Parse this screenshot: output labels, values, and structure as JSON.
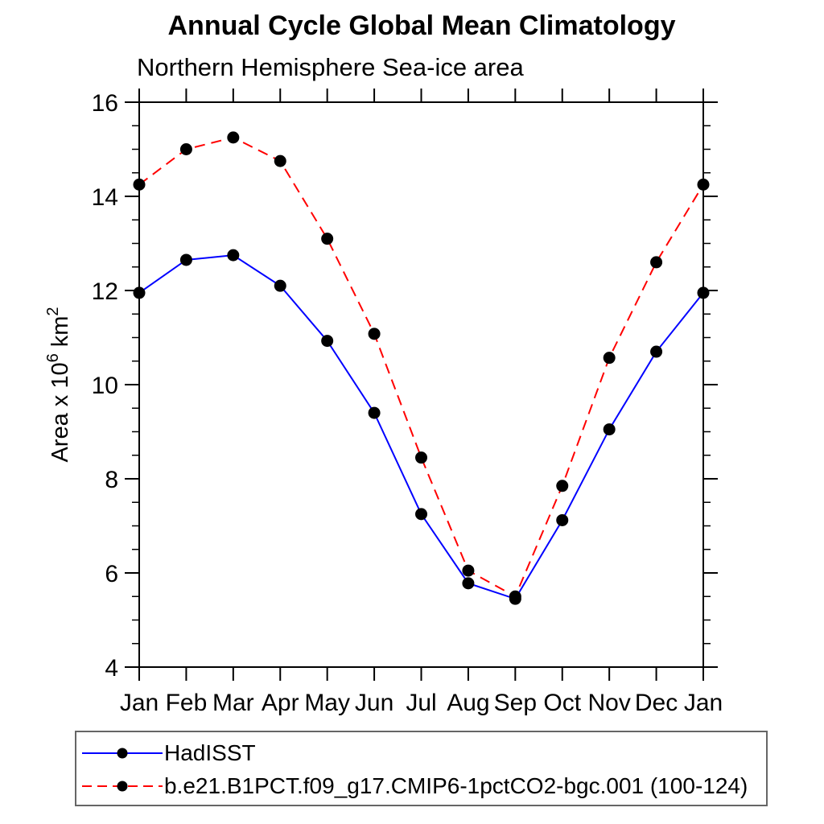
{
  "chart_data": {
    "type": "line",
    "title": "Annual Cycle Global Mean Climatology",
    "subtitle": "Northern Hemisphere Sea-ice area",
    "ylabel": "Area x 10^6 km^2",
    "xlabel": "",
    "categories": [
      "Jan",
      "Feb",
      "Mar",
      "Apr",
      "May",
      "Jun",
      "Jul",
      "Aug",
      "Sep",
      "Oct",
      "Nov",
      "Dec",
      "Jan"
    ],
    "ylim": [
      4,
      16
    ],
    "ytick_major_step": 2,
    "ytick_minor_step": 0.5,
    "grid": false,
    "legend_position": "bottom-left-box",
    "marker_color": "#000000",
    "axis_color": "#000000",
    "series": [
      {
        "name": "HadISST",
        "color": "#0000ff",
        "dash": "solid",
        "marker": "black-dot",
        "values": [
          11.95,
          12.65,
          12.75,
          12.1,
          10.93,
          9.4,
          7.25,
          5.78,
          5.45,
          7.12,
          9.05,
          10.7,
          11.95
        ]
      },
      {
        "name": "b.e21.B1PCT.f09_g17.CMIP6-1pctCO2-bgc.001 (100-124)",
        "color": "#ff0000",
        "dash": "dashed",
        "marker": "black-dot",
        "values": [
          14.25,
          15.0,
          15.25,
          14.75,
          13.1,
          11.08,
          8.45,
          6.05,
          5.5,
          7.85,
          10.57,
          12.6,
          14.25
        ]
      }
    ]
  }
}
